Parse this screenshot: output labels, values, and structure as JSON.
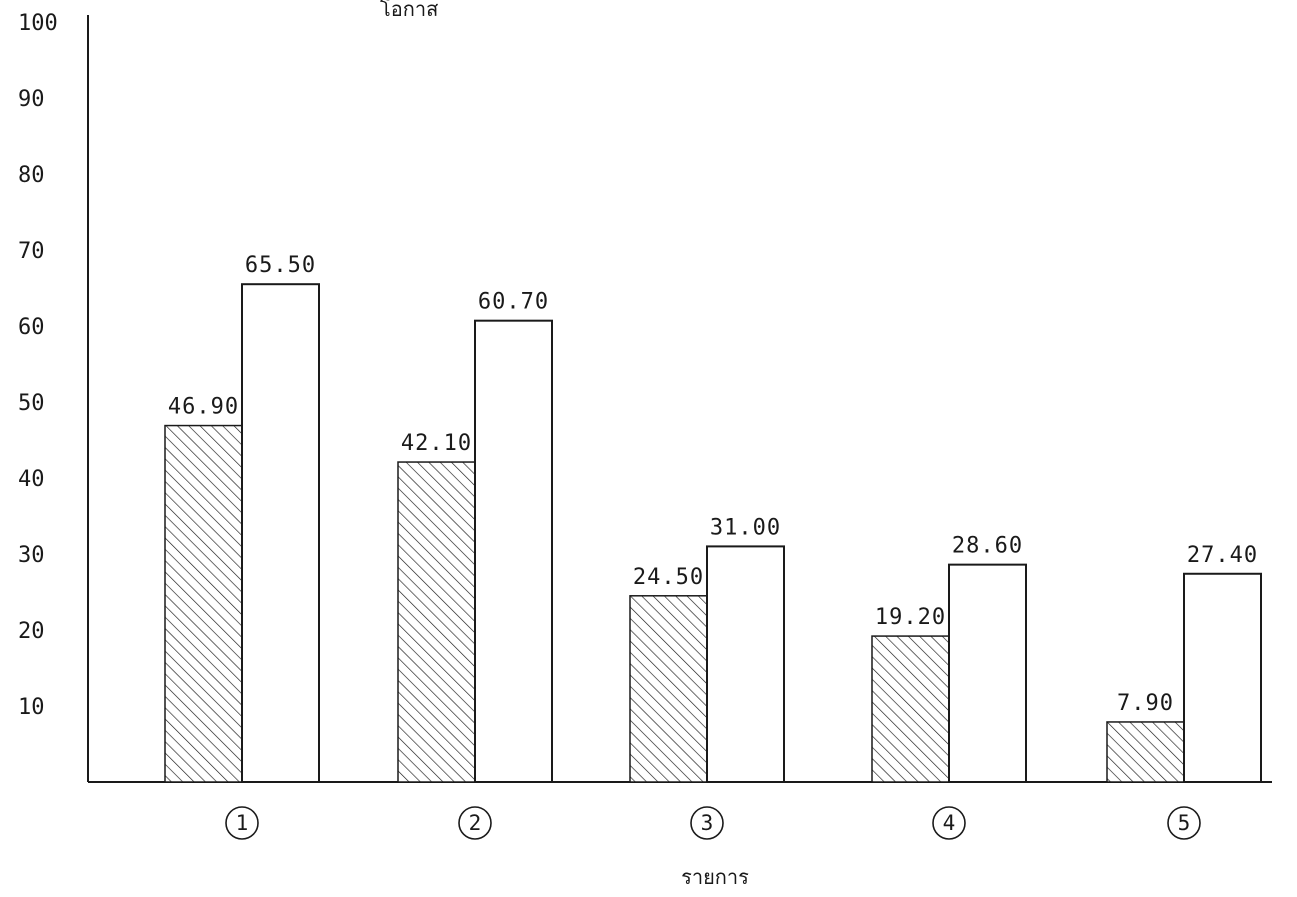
{
  "chart_data": {
    "type": "bar",
    "ylabel": "โอกาส",
    "xlabel": "รายการ",
    "ylim": [
      0,
      100
    ],
    "y_ticks": [
      10,
      20,
      30,
      40,
      50,
      60,
      70,
      80,
      90,
      100
    ],
    "grid": false,
    "categories": [
      "1",
      "2",
      "3",
      "4",
      "5"
    ],
    "series": [
      {
        "fill": "hatched",
        "values": [
          46.9,
          42.1,
          24.5,
          19.2,
          7.9
        ],
        "labels": [
          "46.90",
          "42.10",
          "24.50",
          "19.20",
          "7.90"
        ]
      },
      {
        "fill": "open",
        "values": [
          65.5,
          60.7,
          31.0,
          28.6,
          27.4
        ],
        "labels": [
          "65.50",
          "60.70",
          "31.00",
          "28.60",
          "27.40"
        ]
      }
    ]
  },
  "colors": {
    "ink": "#1a1a1a",
    "background": "#ffffff"
  }
}
